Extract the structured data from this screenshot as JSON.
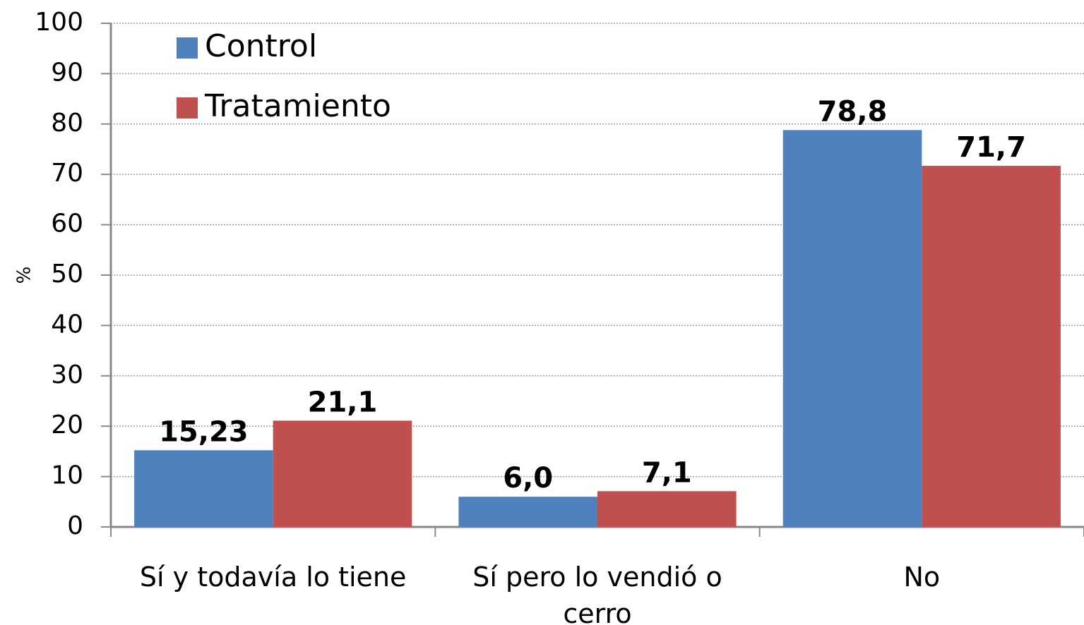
{
  "chart_data": {
    "type": "bar",
    "y_label": "%",
    "categories": [
      "Sí y todavía lo tiene",
      "Sí pero lo vendió o cerro",
      "No"
    ],
    "series": [
      {
        "name": "Control",
        "color": "#4f81bd",
        "values": [
          15.23,
          6.0,
          78.8
        ],
        "value_labels": [
          "15,23",
          "6,0",
          "78,8"
        ]
      },
      {
        "name": "Tratamiento",
        "color": "#c0504d",
        "values": [
          21.1,
          7.1,
          71.7
        ],
        "value_labels": [
          "21,1",
          "7,1",
          "71,7"
        ]
      }
    ],
    "ylim": [
      0,
      100
    ],
    "yticks": [
      0,
      10,
      20,
      30,
      40,
      50,
      60,
      70,
      80,
      90,
      100
    ],
    "grid": true,
    "legend": "upper left"
  }
}
